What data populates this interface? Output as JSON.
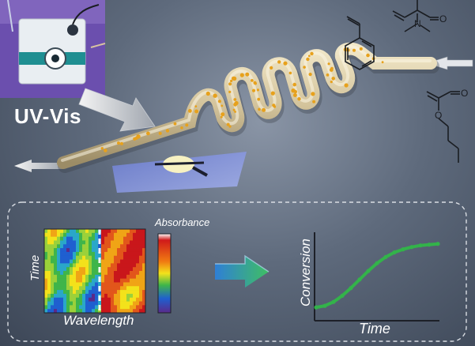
{
  "labels": {
    "uv_vis": "UV-Vis",
    "absorbance": "Absorbance",
    "heatmap_y": "Time",
    "heatmap_x": "Wavelength",
    "plot_y": "Conversion",
    "plot_x": "Time"
  },
  "molecules": {
    "styrene": "styrene",
    "dmaa_atom": "O",
    "dmaa_n": "N",
    "butyl_acrylate_o1": "O",
    "butyl_acrylate_o2": "O"
  },
  "colors": {
    "tube": "#d9cba4",
    "droplet": "#e7a11c",
    "arrow_gradient_start": "#2f7fd6",
    "arrow_gradient_end": "#3fbf63",
    "conversion_line": "#33b34a",
    "dashed_border": "#d9dde3"
  },
  "chart_data": {
    "type": "line",
    "xlabel": "Time",
    "ylabel": "Conversion",
    "series": [
      {
        "values": [
          0.05,
          0.07,
          0.12,
          0.2,
          0.3,
          0.41,
          0.52,
          0.62,
          0.7,
          0.76,
          0.8,
          0.83,
          0.85,
          0.86,
          0.87
        ]
      }
    ],
    "ylim": [
      0,
      1
    ]
  }
}
